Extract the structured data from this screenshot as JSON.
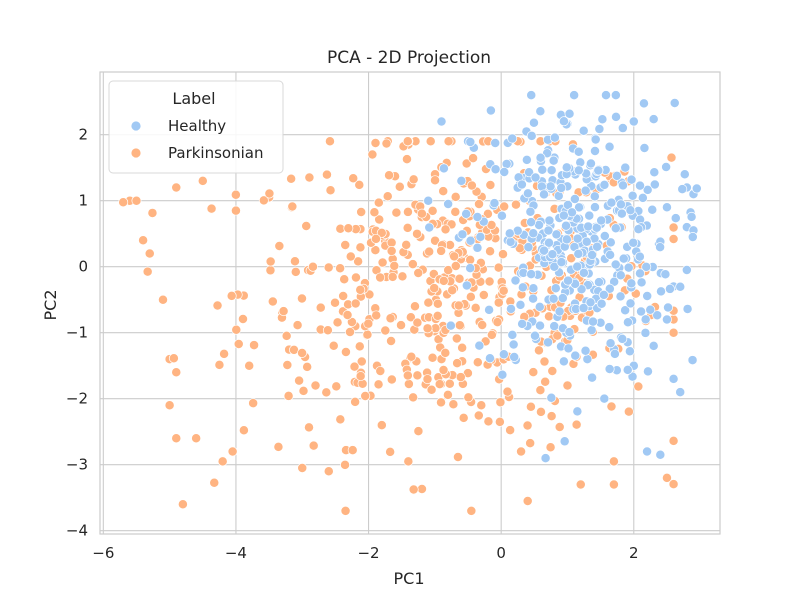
{
  "chart_data": {
    "type": "scatter",
    "title": "PCA - 2D Projection",
    "xlabel": "PC1",
    "ylabel": "PC2",
    "xlim": [
      -6.05,
      3.3
    ],
    "ylim": [
      -4.05,
      2.95
    ],
    "xticks": [
      -6,
      -4,
      -2,
      0,
      2
    ],
    "yticks": [
      -4,
      -3,
      -2,
      -1,
      0,
      1,
      2
    ],
    "xtick_labels": [
      "−6",
      "−4",
      "−2",
      "0",
      "2"
    ],
    "ytick_labels": [
      "−4",
      "−3",
      "−2",
      "−1",
      "0",
      "1",
      "2"
    ],
    "grid": true,
    "legend": {
      "title": "Label",
      "position": "upper-left"
    },
    "series": [
      {
        "name": "Healthy",
        "color": "#a1c9f4",
        "center": [
          1.1,
          0.35
        ],
        "spread": [
          0.75,
          1.05
        ],
        "count": 420,
        "points": [
          [
            1.1,
            2.6
          ],
          [
            0.9,
            2.3
          ],
          [
            -0.9,
            2.2
          ],
          [
            2.0,
            2.2
          ],
          [
            -0.5,
            1.9
          ],
          [
            2.8,
            1.2
          ],
          [
            2.9,
            1.1
          ],
          [
            2.5,
            0.9
          ],
          [
            2.8,
            0.6
          ],
          [
            2.9,
            0.55
          ],
          [
            2.8,
            -0.05
          ],
          [
            2.6,
            -0.3
          ],
          [
            2.5,
            -0.8
          ],
          [
            2.3,
            -1.2
          ],
          [
            2.7,
            -1.9
          ],
          [
            2.6,
            -1.7
          ],
          [
            1.8,
            -0.45
          ],
          [
            2.2,
            -2.8
          ],
          [
            2.4,
            -2.85
          ],
          [
            -1.1,
            1.0
          ],
          [
            -0.8,
            0.95
          ],
          [
            -0.6,
            1.3
          ],
          [
            0.1,
            0.4
          ],
          [
            0.3,
            -0.1
          ],
          [
            0.6,
            1.6
          ],
          [
            1.5,
            1.2
          ],
          [
            1.9,
            0.3
          ],
          [
            0.8,
            -0.9
          ],
          [
            1.3,
            -1.4
          ],
          [
            2.0,
            -1.5
          ]
        ]
      },
      {
        "name": "Parkinsonian",
        "color": "#ffb482",
        "center": [
          -0.7,
          -0.35
        ],
        "spread": [
          1.6,
          1.15
        ],
        "count": 560,
        "points": [
          [
            -5.6,
            1.0
          ],
          [
            -5.5,
            1.0
          ],
          [
            -4.9,
            1.2
          ],
          [
            -4.5,
            1.3
          ],
          [
            -4.0,
            0.85
          ],
          [
            -3.5,
            1.05
          ],
          [
            -5.4,
            0.4
          ],
          [
            -5.3,
            0.2
          ],
          [
            -5.1,
            -0.5
          ],
          [
            -5.0,
            -1.4
          ],
          [
            -4.9,
            -1.6
          ],
          [
            -5.0,
            -2.1
          ],
          [
            -4.9,
            -2.6
          ],
          [
            -4.6,
            -2.6
          ],
          [
            -4.8,
            -3.6
          ],
          [
            -4.2,
            -2.95
          ],
          [
            -4.05,
            -2.8
          ],
          [
            -3.0,
            -3.05
          ],
          [
            -2.6,
            -3.1
          ],
          [
            -0.45,
            -3.7
          ],
          [
            0.4,
            -3.55
          ],
          [
            1.2,
            -3.3
          ],
          [
            1.7,
            -3.3
          ],
          [
            2.5,
            -3.2
          ],
          [
            1.7,
            -2.95
          ],
          [
            -1.4,
            1.85
          ],
          [
            -0.75,
            1.9
          ],
          [
            -1.8,
            -2.4
          ],
          [
            -1.4,
            -2.95
          ],
          [
            0.3,
            -2.8
          ],
          [
            -2.8,
            -1.8
          ],
          [
            -3.8,
            -1.5
          ],
          [
            -3.3,
            -0.7
          ],
          [
            -2.2,
            -0.9
          ],
          [
            -1.3,
            -0.6
          ],
          [
            -0.9,
            -1.4
          ],
          [
            -0.3,
            -2.1
          ],
          [
            0.6,
            -2.2
          ],
          [
            1.0,
            -1.8
          ],
          [
            0.2,
            0.4
          ],
          [
            -0.2,
            0.8
          ],
          [
            -0.6,
            0.25
          ]
        ]
      }
    ]
  }
}
